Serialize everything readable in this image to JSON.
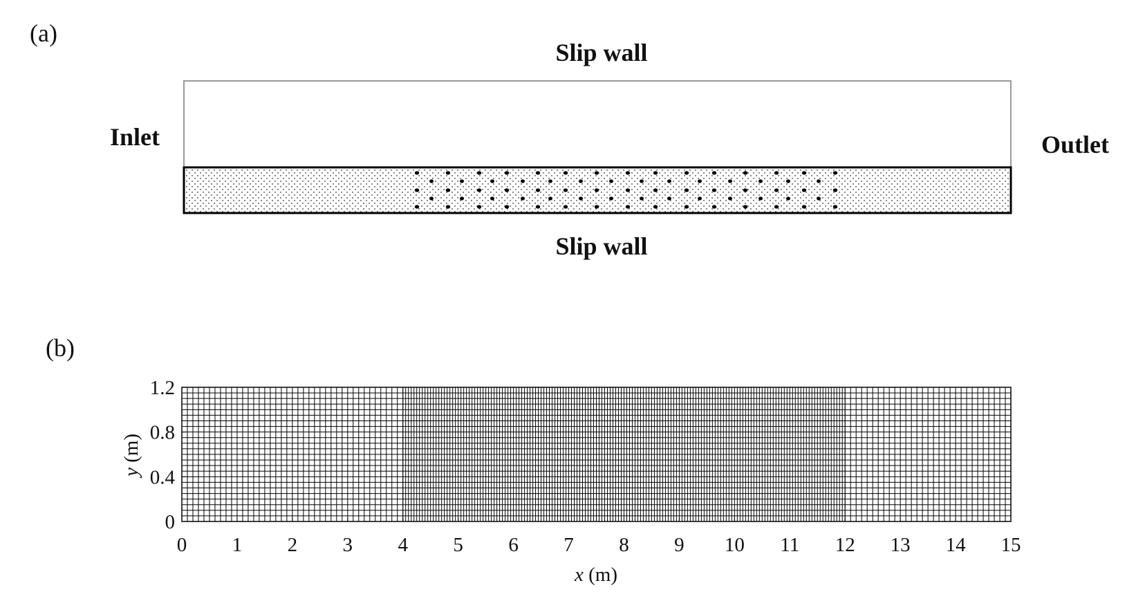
{
  "panel_a": {
    "label": "(a)",
    "top": "Slip wall",
    "bottom": "Slip wall",
    "left": "Inlet",
    "right": "Outlet"
  },
  "panel_b": {
    "label": "(b)",
    "x_symbol": "x",
    "x_unit": "(m)",
    "y_symbol": "y",
    "y_unit": "(m)",
    "xlim": [
      0,
      15
    ],
    "ylim": [
      0,
      1.2
    ],
    "xticks": [
      0,
      1,
      2,
      3,
      4,
      5,
      6,
      7,
      8,
      9,
      10,
      11,
      12,
      13,
      14,
      15
    ],
    "yticks": [
      0,
      0.4,
      0.8,
      1.2
    ],
    "mesh": {
      "coarse_dx": 0.1,
      "fine_dx": 0.05,
      "fine_region": [
        4,
        12
      ],
      "dy": 0.05
    }
  }
}
